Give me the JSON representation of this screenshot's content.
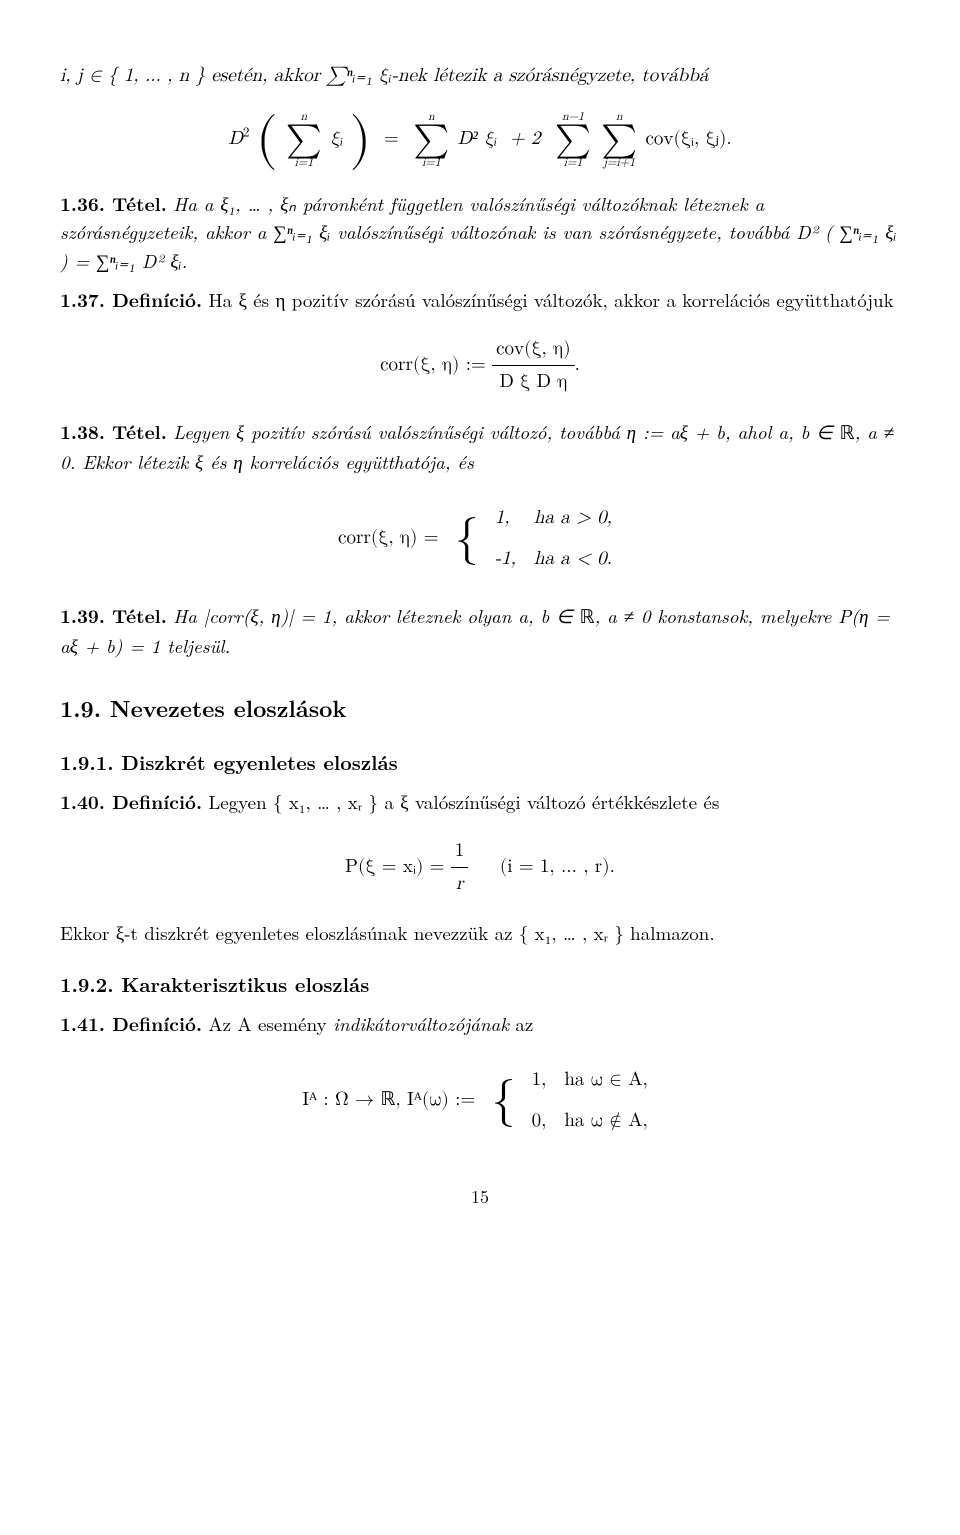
{
  "opening": {
    "line": "i, j ∈ { 1, … , n } esetén, akkor ∑ⁿᵢ₌₁ ξᵢ-nek létezik a szórásnégyzete, továbbá"
  },
  "eq1": {
    "lhs_D": "D",
    "lhs_exp": "2",
    "sum1": {
      "top": "n",
      "bot": "i=1",
      "body": "ξᵢ"
    },
    "eq": "=",
    "sum2": {
      "top": "n",
      "bot": "i=1",
      "body": "D² ξᵢ"
    },
    "plus2": "+ 2",
    "sum3": {
      "top": "n−1",
      "bot": "i=1"
    },
    "sum4": {
      "top": "n",
      "bot": "j=i+1",
      "body": "cov(ξᵢ, ξⱼ)."
    }
  },
  "t136": {
    "lead": "1.36. Tétel.",
    "body_a": "Ha a ξ₁, … , ξₙ páronként független valószínűségi változóknak léteznek a szórásnégyzeteik, akkor a ",
    "inner_sum": "∑ⁿᵢ₌₁ ξᵢ",
    "body_b": " valószínűségi változónak is van szórásnégyzete, továbbá D² ( ∑ⁿᵢ₌₁ ξᵢ ) = ∑ⁿᵢ₌₁ D² ξᵢ."
  },
  "d137": {
    "lead": "1.37. Definíció.",
    "body": "Ha ξ és η pozitív szórású valószínűségi változók, akkor a korrelációs együtthatójuk",
    "eq_lhs": "corr(ξ, η) :=",
    "eq_num": "cov(ξ, η)",
    "eq_den": "D ξ D η",
    "eq_end": "."
  },
  "t138": {
    "lead": "1.38. Tétel.",
    "body_a": "Legyen ξ pozitív szórású valószínűségi változó, továbbá η := aξ + b, ahol a, b ∈ ",
    "R": "ℝ",
    "body_b": ",  a ≠ 0. Ekkor létezik ξ és η korrelációs együtthatója, és",
    "case_lhs": "corr(ξ, η) =",
    "case1_v": "1,",
    "case1_c": "ha a > 0,",
    "case2_v": "-1,",
    "case2_c": "ha a < 0."
  },
  "t139": {
    "lead": "1.39. Tétel.",
    "body_a": "Ha |corr(ξ, η)| = 1, akkor léteznek olyan a, b ∈ ",
    "R": "ℝ",
    "body_b": ",  a ≠ 0 konstansok, melyekre P(η = aξ + b) = 1 teljesül."
  },
  "s19": {
    "title": "1.9.  Nevezetes eloszlások"
  },
  "s191": {
    "title": "1.9.1.  Diszkrét egyenletes eloszlás"
  },
  "d140": {
    "lead": "1.40. Definíció.",
    "body": "Legyen { x₁, … , xᵣ } a ξ valószínűségi változó értékkészlete és",
    "eq_lhs": "P(ξ = xᵢ) =",
    "eq_num": "1",
    "eq_den": "r",
    "eq_cond": "(i = 1, … , r).",
    "after": "Ekkor ξ-t diszkrét egyenletes eloszlásúnak nevezzük az { x₁, … , xᵣ } halmazon."
  },
  "s192": {
    "title": "1.9.2.  Karakterisztikus eloszlás"
  },
  "d141": {
    "lead": "1.41. Definíció.",
    "body_a": "Az A esemény ",
    "body_it": "indikátorváltozójának",
    "body_b": " az",
    "eq_lhs": "Iᴬ : Ω → ",
    "R": "ℝ",
    "eq_mid": ",    Iᴬ(ω) :=",
    "case1_v": "1,",
    "case1_c": "ha ω ∈ A,",
    "case2_v": "0,",
    "case2_c": "ha ω ∉ A,"
  },
  "pagenum": "15",
  "style": {
    "text_color": "#000000",
    "background": "#ffffff",
    "body_fontsize_pt": 14,
    "heading_fontsize_pt": 17,
    "subheading_fontsize_pt": 15,
    "formula_fontsize_pt": 14,
    "font_family": "Computer Modern / Latin Modern (serif)"
  }
}
